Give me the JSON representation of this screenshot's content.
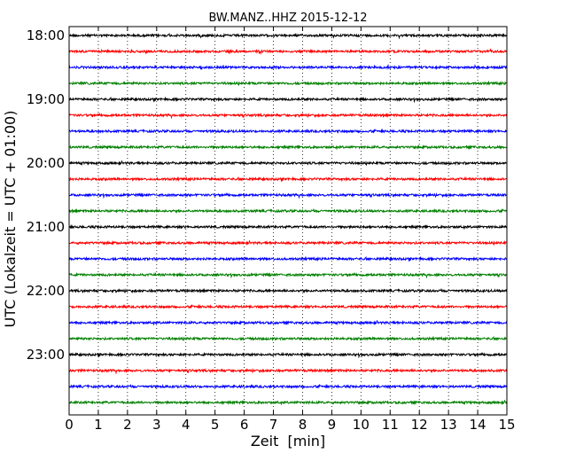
{
  "chart_data": {
    "type": "line",
    "title": "BW.MANZ..HHZ 2015-12-12",
    "xlabel": "Zeit  [min]",
    "ylabel": "UTC (Lokalzeit = UTC + 01:00)",
    "xlim": [
      0,
      15
    ],
    "x_ticks": [
      "0",
      "1",
      "2",
      "3",
      "4",
      "5",
      "6",
      "7",
      "8",
      "9",
      "10",
      "11",
      "12",
      "13",
      "14",
      "15"
    ],
    "y_tick_labels": [
      "18:00",
      "19:00",
      "20:00",
      "21:00",
      "22:00",
      "23:00"
    ],
    "grid": "vertical dotted",
    "line_colors": [
      "#000000",
      "#ff0000",
      "#0000ff",
      "#008000"
    ],
    "traces": [
      {
        "start": "18:00",
        "color": "#000000"
      },
      {
        "start": "18:15",
        "color": "#ff0000"
      },
      {
        "start": "18:30",
        "color": "#0000ff"
      },
      {
        "start": "18:45",
        "color": "#008000"
      },
      {
        "start": "19:00",
        "color": "#000000"
      },
      {
        "start": "19:15",
        "color": "#ff0000"
      },
      {
        "start": "19:30",
        "color": "#0000ff"
      },
      {
        "start": "19:45",
        "color": "#008000"
      },
      {
        "start": "20:00",
        "color": "#000000"
      },
      {
        "start": "20:15",
        "color": "#ff0000"
      },
      {
        "start": "20:30",
        "color": "#0000ff"
      },
      {
        "start": "20:45",
        "color": "#008000"
      },
      {
        "start": "21:00",
        "color": "#000000"
      },
      {
        "start": "21:15",
        "color": "#ff0000"
      },
      {
        "start": "21:30",
        "color": "#0000ff"
      },
      {
        "start": "21:45",
        "color": "#008000"
      },
      {
        "start": "22:00",
        "color": "#000000"
      },
      {
        "start": "22:15",
        "color": "#ff0000"
      },
      {
        "start": "22:30",
        "color": "#0000ff"
      },
      {
        "start": "22:45",
        "color": "#008000"
      },
      {
        "start": "23:00",
        "color": "#000000"
      },
      {
        "start": "23:15",
        "color": "#ff0000"
      },
      {
        "start": "23:30",
        "color": "#0000ff"
      },
      {
        "start": "23:45",
        "color": "#008000"
      }
    ]
  }
}
